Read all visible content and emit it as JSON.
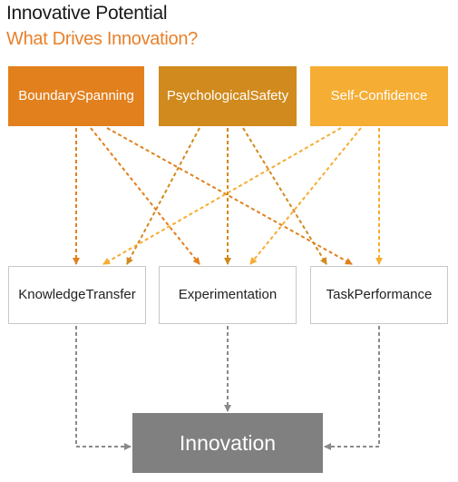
{
  "header": {
    "title": "Innovative Potential",
    "subtitle": "What Drives Innovation?"
  },
  "drivers": [
    {
      "label": "Boundary Spanning",
      "color": "#e2801e"
    },
    {
      "label": "Psychological Safety",
      "color": "#d08a1d"
    },
    {
      "label": "Self-Confidence",
      "color": "#f5ad33"
    }
  ],
  "mediators": [
    {
      "label": "Knowledge Transfer"
    },
    {
      "label": "Experimentation"
    },
    {
      "label": "Task Performance"
    }
  ],
  "outcome": {
    "label": "Innovation",
    "color": "#808080"
  },
  "connections": [
    {
      "from": "Boundary Spanning",
      "to": "Knowledge Transfer"
    },
    {
      "from": "Boundary Spanning",
      "to": "Experimentation"
    },
    {
      "from": "Boundary Spanning",
      "to": "Task Performance"
    },
    {
      "from": "Psychological Safety",
      "to": "Knowledge Transfer"
    },
    {
      "from": "Psychological Safety",
      "to": "Experimentation"
    },
    {
      "from": "Psychological Safety",
      "to": "Task Performance"
    },
    {
      "from": "Self-Confidence",
      "to": "Knowledge Transfer"
    },
    {
      "from": "Self-Confidence",
      "to": "Experimentation"
    },
    {
      "from": "Self-Confidence",
      "to": "Task Performance"
    },
    {
      "from": "Knowledge Transfer",
      "to": "Innovation"
    },
    {
      "from": "Experimentation",
      "to": "Innovation"
    },
    {
      "from": "Task Performance",
      "to": "Innovation"
    }
  ]
}
